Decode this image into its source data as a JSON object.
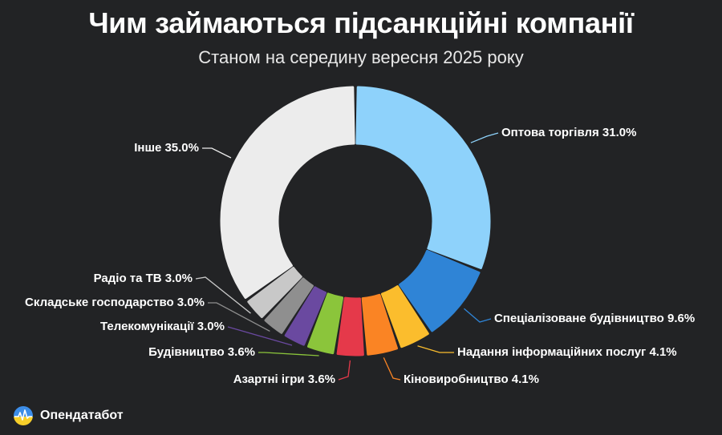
{
  "header": {
    "title": "Чим займаються підсанкційні компанії",
    "subtitle": "Станом на середину вересня 2025 року"
  },
  "brand": {
    "name": "Опендатабот"
  },
  "chart_data": {
    "type": "donut",
    "title": "Чим займаються підсанкційні компанії",
    "subtitle": "Станом на середину вересня 2025 року",
    "series": [
      {
        "category": "Оптова торгівля",
        "value": 31.0,
        "label": "Оптова торгівля 31.0%",
        "color": "#8ed2fb"
      },
      {
        "category": "Спеціалізоване будівництво",
        "value": 9.6,
        "label": "Спеціалізоване будівництво 9.6%",
        "color": "#2f84d6"
      },
      {
        "category": "Надання інформаційних послуг",
        "value": 4.1,
        "label": "Надання інформаційних послуг 4.1%",
        "color": "#fbbd2d"
      },
      {
        "category": "Кіновиробництво",
        "value": 4.1,
        "label": "Кіновиробництво 4.1%",
        "color": "#fa8424"
      },
      {
        "category": "Азартні ігри",
        "value": 3.6,
        "label": "Азартні ігри 3.6%",
        "color": "#e5394a"
      },
      {
        "category": "Будівництво",
        "value": 3.6,
        "label": "Будівництво 3.6%",
        "color": "#8bc53b"
      },
      {
        "category": "Телекомунікації",
        "value": 3.0,
        "label": "Телекомунікації 3.0%",
        "color": "#6a49a0"
      },
      {
        "category": "Складське господарство",
        "value": 3.0,
        "label": "Складське господарство 3.0%",
        "color": "#8f8f8f"
      },
      {
        "category": "Радіо та ТВ",
        "value": 3.0,
        "label": "Радіо та ТВ 3.0%",
        "color": "#c8c8c8"
      },
      {
        "category": "Інше",
        "value": 35.0,
        "label": "Інше 35.0%",
        "color": "#ececec"
      }
    ],
    "unit": "%",
    "legend": "none"
  }
}
